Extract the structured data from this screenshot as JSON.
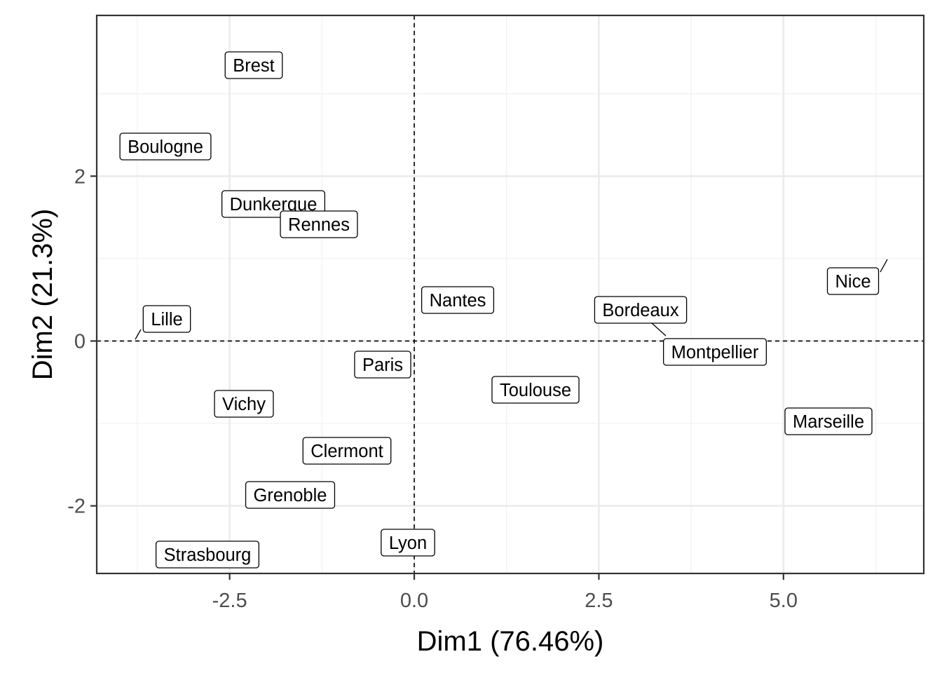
{
  "chart_data": {
    "type": "scatter",
    "xlabel": "Dim1 (76.46%)",
    "ylabel": "Dim2 (21.3%)",
    "xlim": [
      -4.3,
      6.9
    ],
    "ylim": [
      -2.82,
      3.95
    ],
    "x_ticks": [
      -2.5,
      0.0,
      2.5,
      5.0
    ],
    "x_tick_labels": [
      "-2.5",
      "0.0",
      "2.5",
      "5.0"
    ],
    "y_ticks": [
      -2,
      0,
      2
    ],
    "y_tick_labels": [
      "-2",
      "0",
      "2"
    ],
    "reference_lines": {
      "x": 0,
      "y": 0
    },
    "grid": true,
    "points": [
      {
        "label": "Brest",
        "x": -2.2,
        "y": 3.37
      },
      {
        "label": "Boulogne",
        "x": -3.4,
        "y": 2.38
      },
      {
        "label": "Dunkerque",
        "x": -1.9,
        "y": 1.68
      },
      {
        "label": "Rennes",
        "x": -1.3,
        "y": 1.44
      },
      {
        "label": "Nice",
        "x": 6.3,
        "y": 1.0
      },
      {
        "label": "Nantes",
        "x": 0.55,
        "y": 0.5
      },
      {
        "label": "Bordeaux",
        "x": 3.0,
        "y": 0.4
      },
      {
        "label": "Lille",
        "x": -3.8,
        "y": 0.02
      },
      {
        "label": "Montpellier",
        "x": 3.5,
        "y": 0.0
      },
      {
        "label": "Paris",
        "x": -0.45,
        "y": -0.28
      },
      {
        "label": "Toulouse",
        "x": 1.6,
        "y": -0.6
      },
      {
        "label": "Vichy",
        "x": -2.35,
        "y": -0.76
      },
      {
        "label": "Marseille",
        "x": 5.5,
        "y": -0.98
      },
      {
        "label": "Clermont",
        "x": -0.95,
        "y": -1.32
      },
      {
        "label": "Grenoble",
        "x": -1.7,
        "y": -1.87
      },
      {
        "label": "Lyon",
        "x": -0.12,
        "y": -2.45
      },
      {
        "label": "Strasbourg",
        "x": -2.8,
        "y": -2.6
      }
    ]
  }
}
